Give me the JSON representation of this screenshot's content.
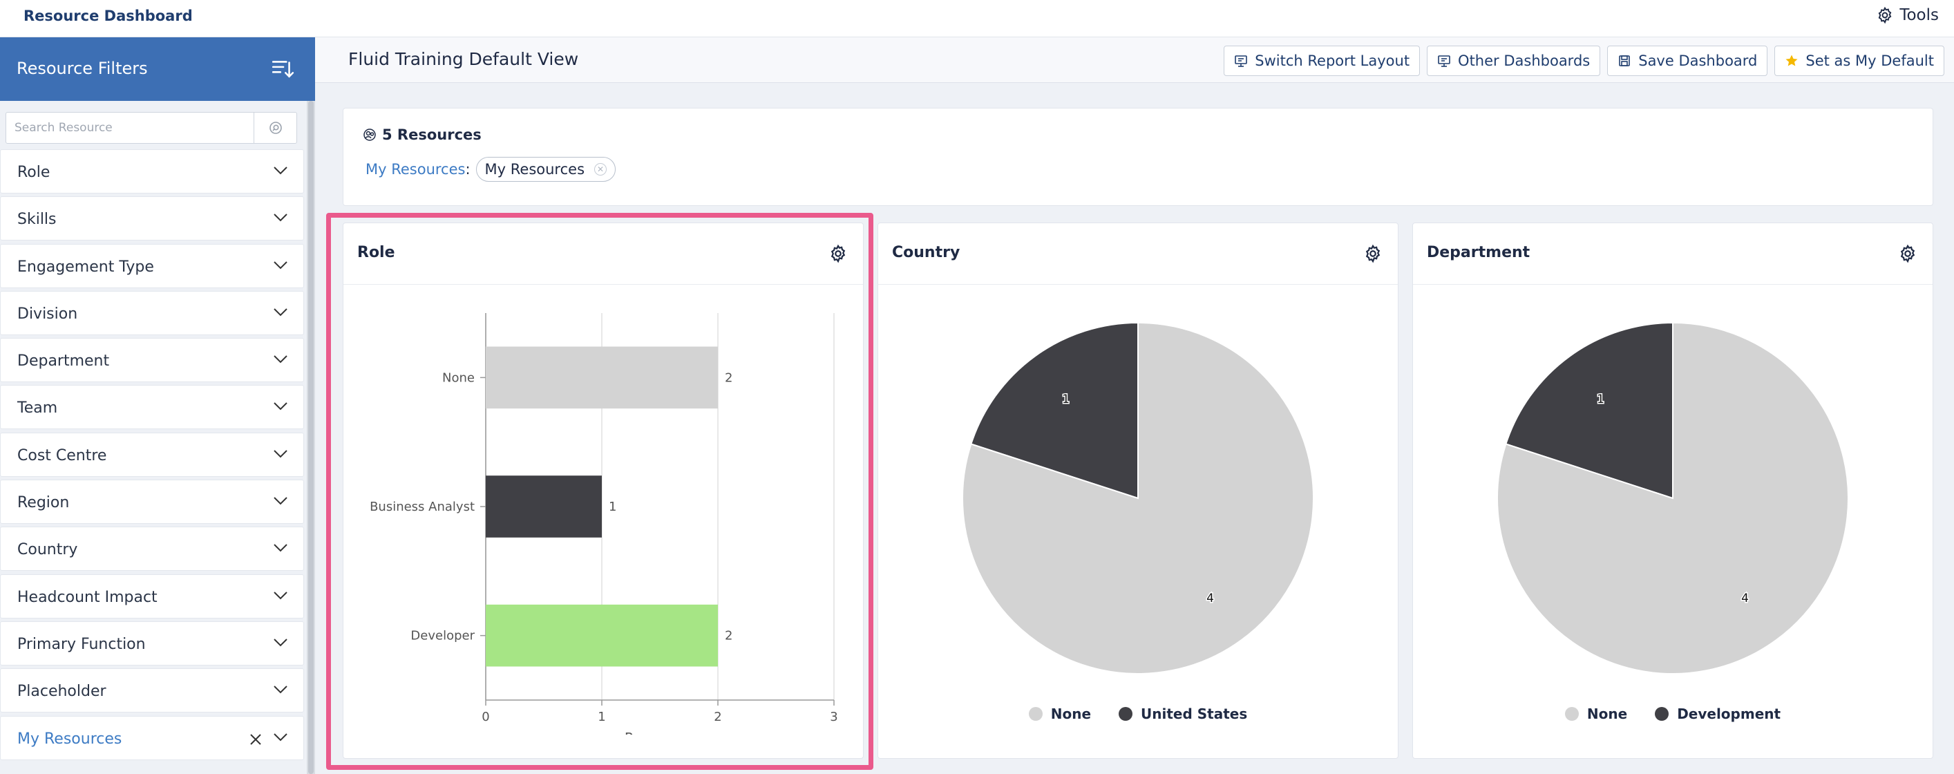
{
  "app": {
    "title": "Resource Dashboard",
    "tools_label": "Tools"
  },
  "sidebar": {
    "title": "Resource Filters",
    "search_placeholder": "Search Resource",
    "filters": [
      {
        "label": "Role"
      },
      {
        "label": "Skills"
      },
      {
        "label": "Engagement Type"
      },
      {
        "label": "Division"
      },
      {
        "label": "Department"
      },
      {
        "label": "Team"
      },
      {
        "label": "Cost Centre"
      },
      {
        "label": "Region"
      },
      {
        "label": "Country"
      },
      {
        "label": "Headcount Impact"
      },
      {
        "label": "Primary Function"
      },
      {
        "label": "Placeholder"
      },
      {
        "label": "My Resources"
      }
    ]
  },
  "header": {
    "view_title": "Fluid Training Default View",
    "actions": [
      "Switch Report Layout",
      "Other Dashboards",
      "Save Dashboard",
      "Set as My Default"
    ]
  },
  "summary": {
    "count_label": "5 Resources",
    "filter_key": "My Resources",
    "filter_sep": ":",
    "filter_value": "My Resources"
  },
  "colors": {
    "none": "#d3d3d3",
    "dark": "#404045",
    "green": "#a6e585",
    "accent": "#3d6fb4",
    "highlight": "#ea5a8c"
  },
  "chart_data": [
    {
      "type": "bar",
      "title": "Role",
      "orientation": "horizontal",
      "categories": [
        "None",
        "Business Analyst",
        "Developer"
      ],
      "values": [
        2,
        1,
        2
      ],
      "colors": [
        "#d3d3d3",
        "#404045",
        "#a6e585"
      ],
      "xlabel": "Resources",
      "xlim": [
        0,
        3
      ],
      "xticks": [
        "0",
        "1",
        "2",
        "3"
      ],
      "data_labels": [
        "2",
        "1",
        "2"
      ]
    },
    {
      "type": "pie",
      "title": "Country",
      "labels": [
        "None",
        "United States"
      ],
      "values": [
        4,
        1
      ],
      "value_labels": [
        "4",
        "1"
      ],
      "colors": [
        "#d3d3d3",
        "#404045"
      ],
      "legend_position": "bottom"
    },
    {
      "type": "pie",
      "title": "Department",
      "labels": [
        "None",
        "Development"
      ],
      "values": [
        4,
        1
      ],
      "value_labels": [
        "4",
        "1"
      ],
      "colors": [
        "#d3d3d3",
        "#404045"
      ],
      "legend_position": "bottom"
    }
  ]
}
